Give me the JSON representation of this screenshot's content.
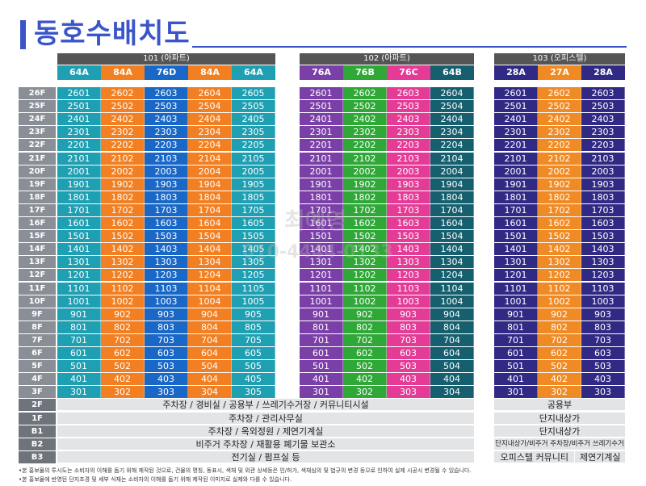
{
  "title": "동호수배치도",
  "buildings": [
    {
      "name": "101 (아파트)",
      "units": [
        {
          "label": "64A",
          "color": "#1f9fb2"
        },
        {
          "label": "84A",
          "color": "#f27f21"
        },
        {
          "label": "76D",
          "color": "#1967c6"
        },
        {
          "label": "84A",
          "color": "#f27f21"
        },
        {
          "label": "64A",
          "color": "#1f9fb2"
        }
      ]
    },
    {
      "name": "102 (아파트)",
      "units": [
        {
          "label": "76A",
          "color": "#7b3fa8"
        },
        {
          "label": "76B",
          "color": "#2fa838"
        },
        {
          "label": "76C",
          "color": "#e43b96"
        },
        {
          "label": "64B",
          "color": "#155f6e"
        }
      ]
    },
    {
      "name": "103 (오피스텔)",
      "units": [
        {
          "label": "28A",
          "color": "#302a84"
        },
        {
          "label": "27A",
          "color": "#f08a24"
        },
        {
          "label": "28A",
          "color": "#302a84"
        }
      ]
    }
  ],
  "floors": [
    "26F",
    "25F",
    "24F",
    "23F",
    "22F",
    "21F",
    "20F",
    "19F",
    "18F",
    "17F",
    "16F",
    "15F",
    "14F",
    "13F",
    "12F",
    "11F",
    "10F",
    "9F",
    "8F",
    "7F",
    "6F",
    "5F",
    "4F",
    "3F"
  ],
  "base_floors": [
    {
      "label": "2F",
      "apt": "주차장 / 경비실 / 공용부 / 쓰레기수거장 / 커뮤니티시설",
      "office": [
        {
          "text": "공용부"
        }
      ]
    },
    {
      "label": "1F",
      "apt": "주차장 / 관리사무실",
      "office": [
        {
          "text": "단지내상가"
        }
      ]
    },
    {
      "label": "B1",
      "apt": "주차장 / 옥외정원 / 제연기계실",
      "office": [
        {
          "text": "단지내상가"
        }
      ]
    },
    {
      "label": "B2",
      "apt": "비주거 주차장 / 재활용 폐기물 보관소",
      "office": [
        {
          "text": "단지내상가/비주거 주차장/비주거 쓰레기수거장"
        }
      ]
    },
    {
      "label": "B3",
      "apt": "전기실 / 펌프실 등",
      "office": [
        {
          "text": "오피스텔 커뮤니티"
        },
        {
          "text": "제연기계실"
        }
      ]
    }
  ],
  "notes": [
    "•본 홍보물의 투시도는 소비자의 이해를 돕기 위해 제작된 것으로, 건물의 명칭, 동표시, 색채 및 외관 상세등은 인/허가, 색채심의 및 법규의 변경 등으로 인하여 실제 시공시 변경될 수 있습니다.",
    "•본 홍보물에 반영된 단지조경 및 세부 식재는 소비자의 이해를 돕기 위해 제작된 이미지로 실제와 다를 수 있습니다."
  ],
  "watermark": {
    "name": "최예영",
    "phone": "010-4444-0133"
  }
}
